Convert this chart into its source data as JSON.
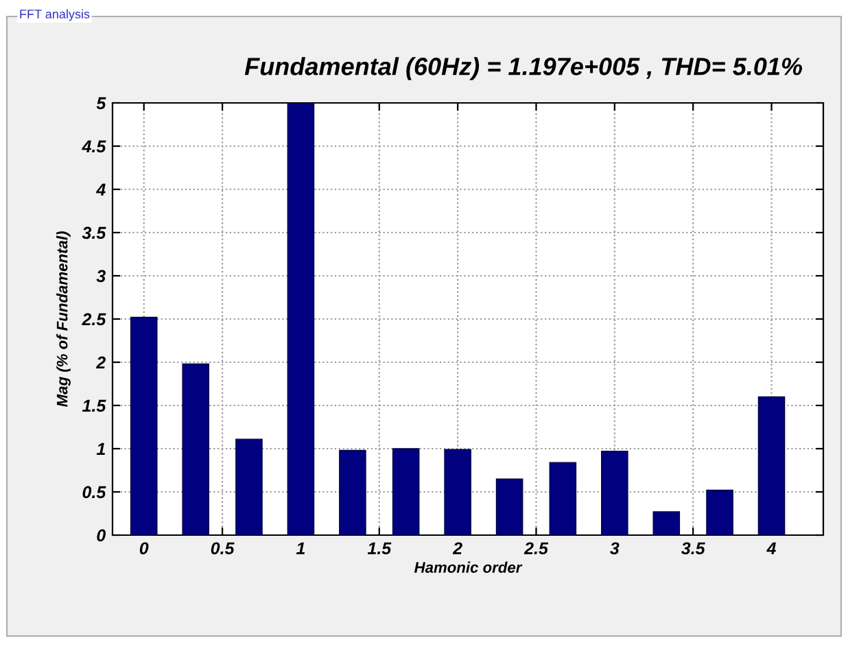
{
  "chart_data": {
    "type": "bar",
    "title": "Fundamental (60Hz) = 1.197e+005 , THD= 5.01%",
    "xlabel": "Hamonic order",
    "ylabel": "Mag (% of Fundamental)",
    "annotations": [
      "FFT analysis"
    ],
    "x": [
      0,
      0.33,
      0.67,
      1,
      1.33,
      1.67,
      2,
      2.33,
      2.67,
      3,
      3.33,
      3.67,
      4
    ],
    "values": [
      2.52,
      1.98,
      1.11,
      5,
      0.98,
      1.0,
      0.99,
      0.65,
      0.84,
      0.97,
      0.27,
      0.52,
      1.6
    ],
    "color": "#000080",
    "xlim": [
      -0.2,
      4.33
    ],
    "xticks": [
      0,
      0.5,
      1,
      1.5,
      2,
      2.5,
      3,
      3.5,
      4
    ],
    "ylim": [
      0,
      5
    ],
    "yticks": [
      0,
      0.5,
      1,
      1.5,
      2,
      2.5,
      3,
      3.5,
      4,
      4.5,
      5
    ],
    "grid": true
  }
}
